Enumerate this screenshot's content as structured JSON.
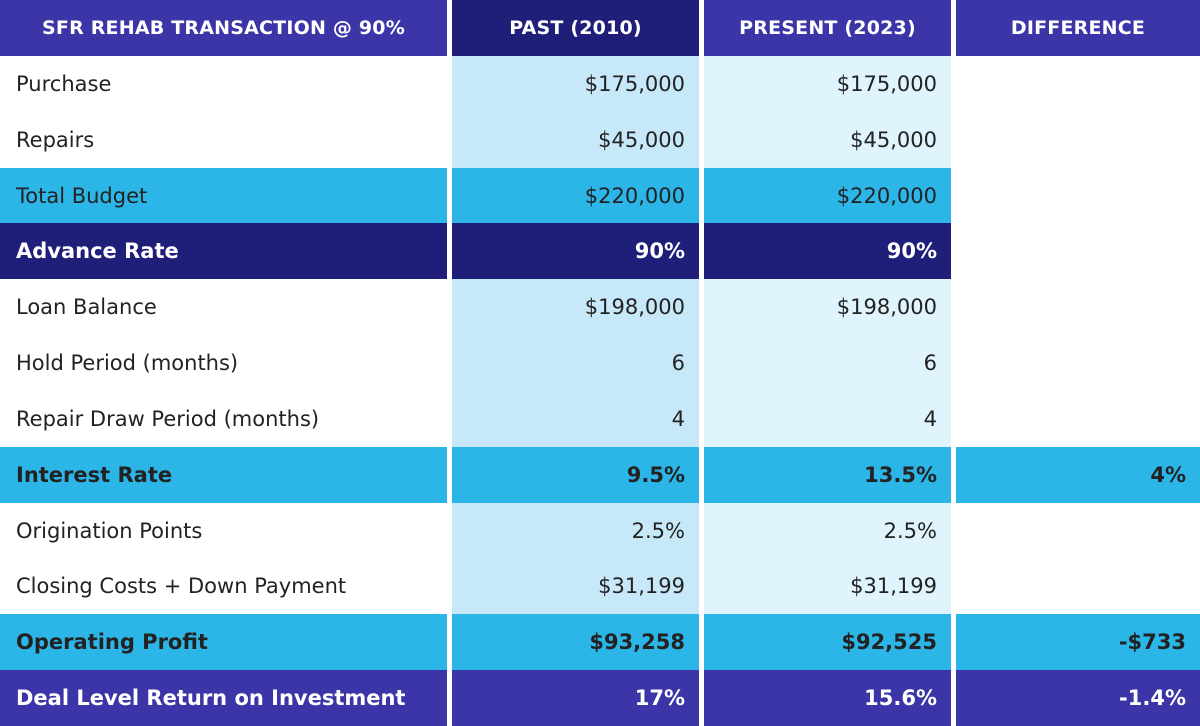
{
  "header": [
    "SFR REHAB TRANSACTION @ 90%",
    "PAST (2010)",
    "PRESENT (2023)",
    "DIFFERENCE"
  ],
  "rows": [
    {
      "label": "Purchase",
      "past": "$175,000",
      "present": "$175,000",
      "diff": ""
    },
    {
      "label": "Repairs",
      "past": "$45,000",
      "present": "$45,000",
      "diff": ""
    },
    {
      "label": "Total Budget",
      "past": "$220,000",
      "present": "$220,000",
      "diff": ""
    },
    {
      "label": "Advance Rate",
      "past": "90%",
      "present": "90%",
      "diff": ""
    },
    {
      "label": "Loan Balance",
      "past": "$198,000",
      "present": "$198,000",
      "diff": ""
    },
    {
      "label": "Hold Period (months)",
      "past": "6",
      "present": "6",
      "diff": ""
    },
    {
      "label": "Repair Draw Period (months)",
      "past": "4",
      "present": "4",
      "diff": ""
    },
    {
      "label": "Interest Rate",
      "past": "9.5%",
      "present": "13.5%",
      "diff": "4%"
    },
    {
      "label": "Origination Points",
      "past": "2.5%",
      "present": "2.5%",
      "diff": ""
    },
    {
      "label": "Closing Costs + Down Payment",
      "past": "$31,199",
      "present": "$31,199",
      "diff": ""
    },
    {
      "label": "Operating Profit",
      "past": "$93,258",
      "present": "$92,525",
      "diff": "-$733"
    },
    {
      "label": "Deal Level Return on Investment",
      "past": "17%",
      "present": "15.6%",
      "diff": "-1.4%"
    }
  ],
  "colors": {
    "navy": "#1f1f7a",
    "purple": "#3b35a8",
    "sky": "#2cb6e8",
    "pale_blue": "#c7e8f8",
    "paler_blue": "#dff4fc"
  }
}
